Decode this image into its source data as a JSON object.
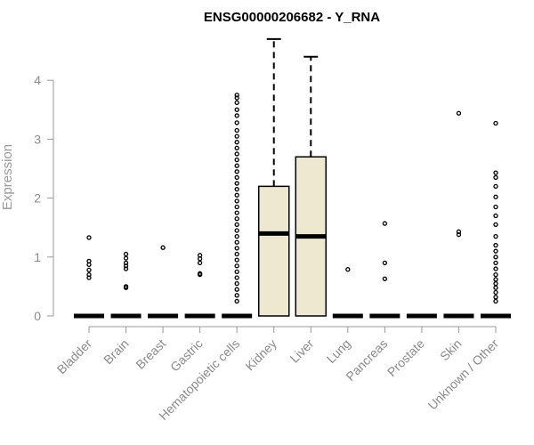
{
  "chart_data": {
    "type": "box",
    "title": "ENSG00000206682 - Y_RNA",
    "xlabel": "",
    "ylabel": "Expression",
    "ylim": [
      0,
      4.9
    ],
    "yticks": [
      0,
      1,
      2,
      3,
      4
    ],
    "grid": false,
    "colors": {
      "box_fill": "#efe8d0",
      "line": "#000000",
      "axis": "#999999",
      "tick_text": "#8a8a8a"
    },
    "categories": [
      "Bladder",
      "Brain",
      "Breast",
      "Gastric",
      "Hematopoietic cells",
      "Kidney",
      "Liver",
      "Lung",
      "Pancreas",
      "Prostate",
      "Skin",
      "Unknown / Other"
    ],
    "boxes": [
      {
        "category": "Bladder",
        "q1": 0,
        "median": 0,
        "q3": 0,
        "whisker_low": 0,
        "whisker_high": 0,
        "outliers": [
          0.65,
          0.7,
          0.78,
          0.87,
          0.93,
          1.33
        ]
      },
      {
        "category": "Brain",
        "q1": 0,
        "median": 0,
        "q3": 0,
        "whisker_low": 0,
        "whisker_high": 0,
        "outliers": [
          0.48,
          0.5,
          0.8,
          0.85,
          0.9,
          0.98,
          1.05
        ]
      },
      {
        "category": "Breast",
        "q1": 0,
        "median": 0,
        "q3": 0,
        "whisker_low": 0,
        "whisker_high": 0,
        "outliers": [
          1.16
        ]
      },
      {
        "category": "Gastric",
        "q1": 0,
        "median": 0,
        "q3": 0,
        "whisker_low": 0,
        "whisker_high": 0,
        "outliers": [
          0.7,
          0.72,
          0.9,
          0.97,
          1.03
        ]
      },
      {
        "category": "Hematopoietic cells",
        "q1": 0,
        "median": 0,
        "q3": 0,
        "whisker_low": 0,
        "whisker_high": 0,
        "outliers": [
          0.25,
          0.35,
          0.45,
          0.55,
          0.65,
          0.75,
          0.85,
          0.95,
          1.05,
          1.15,
          1.25,
          1.35,
          1.45,
          1.55,
          1.65,
          1.75,
          1.85,
          1.95,
          2.05,
          2.15,
          2.25,
          2.35,
          2.45,
          2.55,
          2.65,
          2.75,
          2.85,
          2.95,
          3.05,
          3.15,
          3.28,
          3.4,
          3.5,
          3.62,
          3.7,
          3.75
        ]
      },
      {
        "category": "Kidney",
        "q1": 0,
        "median": 1.4,
        "q3": 2.2,
        "whisker_low": 0,
        "whisker_high": 4.7,
        "outliers": []
      },
      {
        "category": "Liver",
        "q1": 0,
        "median": 1.35,
        "q3": 2.7,
        "whisker_low": 0,
        "whisker_high": 4.4,
        "outliers": []
      },
      {
        "category": "Lung",
        "q1": 0,
        "median": 0,
        "q3": 0,
        "whisker_low": 0,
        "whisker_high": 0,
        "outliers": [
          0.79
        ]
      },
      {
        "category": "Pancreas",
        "q1": 0,
        "median": 0,
        "q3": 0,
        "whisker_low": 0,
        "whisker_high": 0,
        "outliers": [
          0.63,
          0.9,
          1.57
        ]
      },
      {
        "category": "Prostate",
        "q1": 0,
        "median": 0,
        "q3": 0,
        "whisker_low": 0,
        "whisker_high": 0,
        "outliers": []
      },
      {
        "category": "Skin",
        "q1": 0,
        "median": 0,
        "q3": 0,
        "whisker_low": 0,
        "whisker_high": 0,
        "outliers": [
          1.38,
          1.43,
          3.44
        ]
      },
      {
        "category": "Unknown / Other",
        "q1": 0,
        "median": 0,
        "q3": 0,
        "whisker_low": 0,
        "whisker_high": 0,
        "outliers": [
          0.25,
          0.32,
          0.4,
          0.48,
          0.55,
          0.62,
          0.7,
          0.8,
          0.9,
          1.0,
          1.1,
          1.2,
          1.35,
          1.55,
          1.7,
          1.85,
          2.02,
          2.2,
          2.35,
          2.43,
          3.27
        ]
      }
    ]
  }
}
